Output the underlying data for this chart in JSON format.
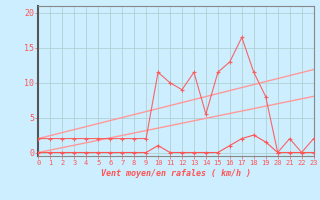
{
  "title": "",
  "xlabel": "Vent moyen/en rafales ( km/h )",
  "background_color": "#cceeff",
  "grid_color": "#aacccc",
  "line_color": "#ff5555",
  "trend_color": "#ff9999",
  "x_ticks": [
    0,
    1,
    2,
    3,
    4,
    5,
    6,
    7,
    8,
    9,
    10,
    11,
    12,
    13,
    14,
    15,
    16,
    17,
    18,
    19,
    20,
    21,
    22,
    23
  ],
  "y_ticks": [
    0,
    5,
    10,
    15,
    20
  ],
  "ylim": [
    -0.5,
    21
  ],
  "xlim": [
    0,
    23
  ],
  "series": {
    "rafales": [
      2,
      2,
      2,
      2,
      2,
      2,
      2,
      2,
      2,
      2,
      11.5,
      10,
      9,
      11.5,
      5.5,
      11.5,
      13,
      16.5,
      11.5,
      8,
      0,
      2,
      0,
      2
    ],
    "moyen": [
      0,
      0,
      0,
      0,
      0,
      0,
      0,
      0,
      0,
      0,
      1,
      0,
      0,
      0,
      0,
      0,
      1,
      2,
      2.5,
      1.5,
      0,
      0,
      0,
      0
    ],
    "trend1": [
      2,
      2.43,
      2.86,
      3.29,
      3.72,
      4.15,
      4.58,
      5.01,
      5.44,
      5.87,
      6.3,
      6.73,
      7.16,
      7.59,
      8.02,
      8.45,
      8.88,
      9.31,
      9.74,
      10.17,
      10.6,
      11.03,
      11.46,
      11.89
    ],
    "trend2": [
      0,
      0.35,
      0.7,
      1.05,
      1.4,
      1.75,
      2.1,
      2.45,
      2.8,
      3.15,
      3.5,
      3.85,
      4.2,
      4.55,
      4.9,
      5.25,
      5.6,
      5.95,
      6.3,
      6.65,
      7.0,
      7.35,
      7.7,
      8.05
    ]
  }
}
